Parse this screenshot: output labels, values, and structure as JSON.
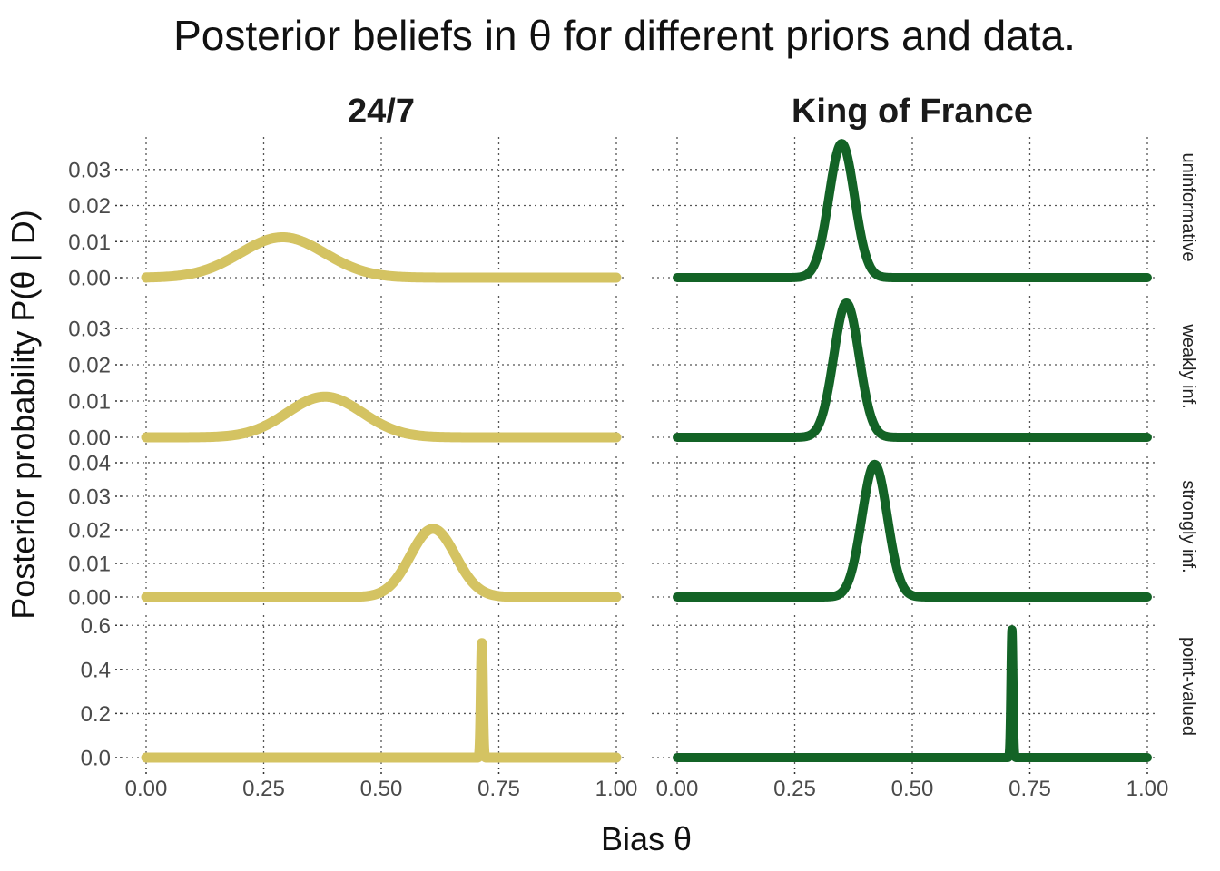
{
  "chart_data": {
    "type": "line",
    "title": "Posterior beliefs in θ for different priors and data.",
    "xlabel": "Bias θ",
    "ylabel": "Posterior probability P(θ | D)",
    "xlim": [
      0,
      1
    ],
    "x_ticks": [
      "0.00",
      "0.25",
      "0.50",
      "0.75",
      "1.00"
    ],
    "grid": true,
    "colors": {
      "24/7": "#d4c362",
      "King of France": "#136326"
    },
    "columns": [
      "24/7",
      "King of France"
    ],
    "rows": [
      {
        "label": "uninformative",
        "ylim": [
          0,
          0.038
        ],
        "y_ticks": [
          "0.00",
          "0.01",
          "0.02",
          "0.03"
        ],
        "y_tick_values": [
          0,
          0.01,
          0.02,
          0.03
        ],
        "series": [
          {
            "name": "24/7",
            "mean": 0.29,
            "sd": 0.09,
            "peak": 0.0112
          },
          {
            "name": "King of France",
            "mean": 0.35,
            "sd": 0.027,
            "peak": 0.0372
          }
        ]
      },
      {
        "label": "weakly inf.",
        "ylim": [
          0,
          0.038
        ],
        "y_ticks": [
          "0.00",
          "0.01",
          "0.02",
          "0.03"
        ],
        "y_tick_values": [
          0,
          0.01,
          0.02,
          0.03
        ],
        "series": [
          {
            "name": "24/7",
            "mean": 0.38,
            "sd": 0.08,
            "peak": 0.0112
          },
          {
            "name": "King of France",
            "mean": 0.36,
            "sd": 0.027,
            "peak": 0.037
          }
        ]
      },
      {
        "label": "strongly inf.",
        "ylim": [
          0,
          0.0408
        ],
        "y_ticks": [
          "0.00",
          "0.01",
          "0.02",
          "0.03",
          "0.04"
        ],
        "y_tick_values": [
          0,
          0.01,
          0.02,
          0.03,
          0.04
        ],
        "series": [
          {
            "name": "24/7",
            "mean": 0.61,
            "sd": 0.048,
            "peak": 0.0203
          },
          {
            "name": "King of France",
            "mean": 0.42,
            "sd": 0.027,
            "peak": 0.0395
          }
        ]
      },
      {
        "label": "point-valued",
        "ylim": [
          0,
          0.63
        ],
        "y_ticks": [
          "0.0",
          "0.2",
          "0.4",
          "0.6"
        ],
        "y_tick_values": [
          0,
          0.2,
          0.4,
          0.6
        ],
        "series": [
          {
            "name": "24/7",
            "mean": 0.714,
            "sd": 0.0022,
            "peak": 0.52
          },
          {
            "name": "King of France",
            "mean": 0.712,
            "sd": 0.0022,
            "peak": 0.58
          }
        ]
      }
    ]
  }
}
